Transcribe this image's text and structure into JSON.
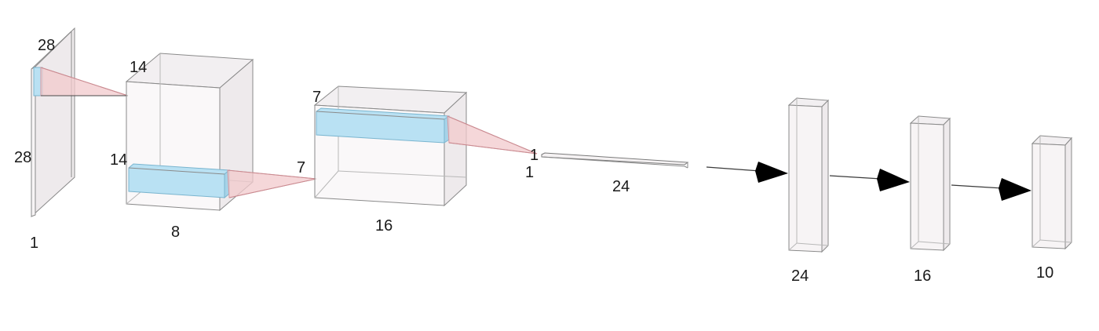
{
  "input_layer": {
    "height": "28",
    "width": "28",
    "channels": "1"
  },
  "conv1_layer": {
    "height": "14",
    "width": "14",
    "channels": "8",
    "kernel_out": "7"
  },
  "conv2_layer": {
    "height": "7",
    "channels": "16"
  },
  "flatten_layer": {
    "height": "1",
    "width": "1",
    "length": "24"
  },
  "dense_layers": [
    {
      "units": "24"
    },
    {
      "units": "16"
    },
    {
      "units": "10"
    }
  ],
  "colors": {
    "kernel_fill": "#b9e1f3",
    "receptive_field": "#f2c9cc",
    "arrow": "#000000",
    "box_edge": "#8a8a8a"
  }
}
